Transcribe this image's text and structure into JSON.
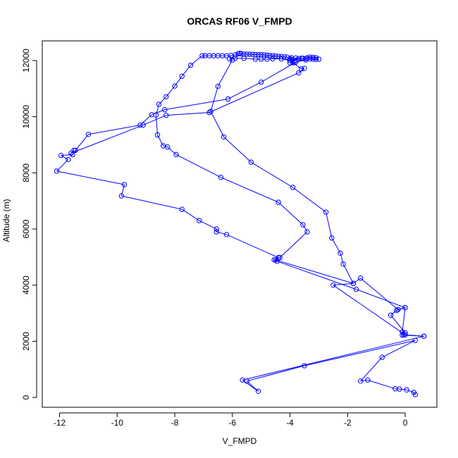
{
  "chart_data": {
    "type": "line",
    "title": "ORCAS RF06 V_FMPD",
    "xlabel": "V_FMPD",
    "ylabel": "Altitude (m)",
    "xlim": [
      -12.6,
      1.1
    ],
    "ylim": [
      -350,
      12700
    ],
    "x_ticks": [
      -12,
      -10,
      -8,
      -6,
      -4,
      -2,
      0
    ],
    "y_ticks": [
      0,
      2000,
      4000,
      6000,
      8000,
      10000,
      12000
    ],
    "x_tick_labels": [
      "-12",
      "-10",
      "-8",
      "-6",
      "-4",
      "-2",
      "0"
    ],
    "y_tick_labels": [
      "0",
      "2000",
      "4000",
      "6000",
      "8000",
      "10000",
      "12000"
    ],
    "grid": false,
    "series_color": "#0000ff",
    "marker": "open-circle",
    "points": [
      [
        0.35,
        100
      ],
      [
        0.3,
        180
      ],
      [
        0.05,
        270
      ],
      [
        -0.2,
        300
      ],
      [
        -0.35,
        310
      ],
      [
        -1.3,
        620
      ],
      [
        -1.55,
        580
      ],
      [
        -0.8,
        1430
      ],
      [
        0.35,
        2030
      ],
      [
        -3.5,
        1130
      ],
      [
        -5.5,
        580
      ],
      [
        -5.1,
        220
      ],
      [
        -5.65,
        620
      ],
      [
        0.65,
        2180
      ],
      [
        -0.05,
        2230
      ],
      [
        -0.1,
        2330
      ],
      [
        0.0,
        3200
      ],
      [
        -0.25,
        3130
      ],
      [
        -1.55,
        4250
      ],
      [
        -1.8,
        4060
      ],
      [
        -4.5,
        4900
      ],
      [
        -4.4,
        4980
      ],
      [
        -6.2,
        5800
      ],
      [
        -6.55,
        5900
      ],
      [
        -6.55,
        6000
      ],
      [
        -7.15,
        6300
      ],
      [
        -7.75,
        6700
      ],
      [
        -9.85,
        7180
      ],
      [
        -9.75,
        7580
      ],
      [
        -12.1,
        8060
      ],
      [
        -11.7,
        8470
      ],
      [
        -11.95,
        8620
      ],
      [
        -11.55,
        8650
      ],
      [
        -11.45,
        8800
      ],
      [
        -11.0,
        9370
      ],
      [
        -9.2,
        9700
      ],
      [
        -8.8,
        10070
      ],
      [
        -8.35,
        10250
      ],
      [
        -6.15,
        10630
      ],
      [
        -5.0,
        11230
      ],
      [
        -3.8,
        11940
      ],
      [
        -3.45,
        12020
      ],
      [
        -3.95,
        12040
      ],
      [
        -4.0,
        12060
      ],
      [
        -3.7,
        12070
      ],
      [
        -3.55,
        12080
      ],
      [
        -3.4,
        12100
      ],
      [
        -3.3,
        12120
      ],
      [
        -3.2,
        12110
      ],
      [
        -3.1,
        12100
      ],
      [
        -3.0,
        12050
      ],
      [
        -3.1,
        12040
      ],
      [
        -3.2,
        12050
      ],
      [
        -3.3,
        12060
      ],
      [
        -3.45,
        12070
      ],
      [
        -3.6,
        12080
      ],
      [
        -3.8,
        12090
      ],
      [
        -3.95,
        12100
      ],
      [
        -4.1,
        12120
      ],
      [
        -4.2,
        12130
      ],
      [
        -4.3,
        12140
      ],
      [
        -4.4,
        12150
      ],
      [
        -4.5,
        12160
      ],
      [
        -4.6,
        12170
      ],
      [
        -4.7,
        12180
      ],
      [
        -4.8,
        12190
      ],
      [
        -4.9,
        12200
      ],
      [
        -5.0,
        12205
      ],
      [
        -5.1,
        12210
      ],
      [
        -5.2,
        12210
      ],
      [
        -5.3,
        12220
      ],
      [
        -5.4,
        12220
      ],
      [
        -5.5,
        12225
      ],
      [
        -5.6,
        12230
      ],
      [
        -5.7,
        12240
      ],
      [
        -5.75,
        12260
      ],
      [
        -5.8,
        12240
      ],
      [
        -5.9,
        12200
      ],
      [
        -6.05,
        12180
      ],
      [
        -6.2,
        12170
      ],
      [
        -6.35,
        12170
      ],
      [
        -6.5,
        12170
      ],
      [
        -6.65,
        12170
      ],
      [
        -6.8,
        12170
      ],
      [
        -6.95,
        12170
      ],
      [
        -7.05,
        12170
      ],
      [
        -7.45,
        11830
      ],
      [
        -7.75,
        11440
      ],
      [
        -8.0,
        11090
      ],
      [
        -8.3,
        10710
      ],
      [
        -8.55,
        10440
      ],
      [
        -8.65,
        10060
      ],
      [
        -8.6,
        9350
      ],
      [
        -8.4,
        8960
      ],
      [
        -8.25,
        8920
      ],
      [
        -7.95,
        8650
      ],
      [
        -6.4,
        7840
      ],
      [
        -4.4,
        6950
      ],
      [
        -3.55,
        6150
      ],
      [
        -3.4,
        5900
      ],
      [
        -4.35,
        4980
      ],
      [
        -4.55,
        4900
      ],
      [
        -4.45,
        4850
      ],
      [
        -1.7,
        3850
      ],
      [
        0.0,
        3200
      ],
      [
        -0.3,
        3100
      ],
      [
        -0.5,
        2930
      ],
      [
        0.0,
        2300
      ],
      [
        -0.1,
        2220
      ],
      [
        0.65,
        2180
      ],
      [
        0.0,
        2230
      ],
      [
        -2.5,
        4000
      ],
      [
        -1.8,
        4060
      ],
      [
        -2.15,
        4750
      ],
      [
        -2.25,
        5140
      ],
      [
        -2.55,
        5680
      ],
      [
        -2.75,
        6600
      ],
      [
        -3.9,
        7480
      ],
      [
        -5.35,
        8380
      ],
      [
        -6.3,
        9280
      ],
      [
        -6.75,
        10190
      ],
      [
        -6.5,
        11080
      ],
      [
        -6.0,
        12020
      ],
      [
        -6.1,
        12060
      ],
      [
        -5.9,
        12080
      ],
      [
        -5.6,
        12080
      ],
      [
        -5.2,
        12050
      ],
      [
        -5.0,
        12050
      ],
      [
        -4.8,
        12050
      ],
      [
        -4.6,
        12060
      ],
      [
        -4.3,
        12060
      ],
      [
        -4.0,
        12000
      ],
      [
        -3.85,
        11940
      ],
      [
        -4.0,
        11920
      ],
      [
        -3.9,
        11920
      ],
      [
        -3.6,
        11700
      ],
      [
        -3.5,
        11720
      ],
      [
        -3.7,
        11560
      ],
      [
        -6.8,
        10150
      ],
      [
        -8.3,
        10050
      ],
      [
        -9.1,
        9700
      ],
      [
        -11.6,
        8700
      ],
      [
        -11.5,
        8800
      ]
    ]
  }
}
